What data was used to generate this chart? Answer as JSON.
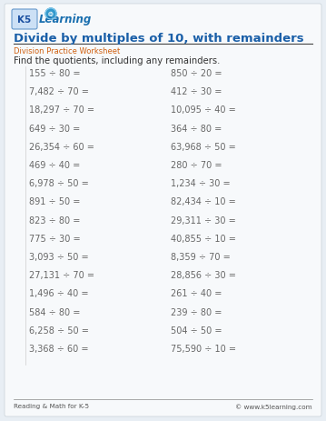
{
  "title": "Divide by multiples of 10, with remainders",
  "subtitle": "Division Practice Worksheet",
  "instruction": "Find the quotients, including any remainders.",
  "title_color": "#1a5fa8",
  "subtitle_color": "#d06010",
  "instruction_color": "#333333",
  "background_color": "#e8eef4",
  "inner_bg_color": "#f7f9fb",
  "footer_left": "Reading & Math for K-5",
  "footer_right": "© www.k5learning.com",
  "problems_left": [
    "155 ÷ 80 =",
    "7,482 ÷ 70 =",
    "18,297 ÷ 70 =",
    "649 ÷ 30 =",
    "26,354 ÷ 60 =",
    "469 ÷ 40 =",
    "6,978 ÷ 50 =",
    "891 ÷ 50 =",
    "823 ÷ 80 =",
    "775 ÷ 30 =",
    "3,093 ÷ 50 =",
    "27,131 ÷ 70 =",
    "1,496 ÷ 40 =",
    "584 ÷ 80 =",
    "6,258 ÷ 50 =",
    "3,368 ÷ 60 ="
  ],
  "problems_right": [
    "850 ÷ 20 =",
    "412 ÷ 30 =",
    "10,095 ÷ 40 =",
    "364 ÷ 80 =",
    "63,968 ÷ 50 =",
    "280 ÷ 70 =",
    "1,234 ÷ 30 =",
    "82,434 ÷ 10 =",
    "29,311 ÷ 30 =",
    "40,855 ÷ 10 =",
    "8,359 ÷ 70 =",
    "28,856 ÷ 30 =",
    "261 ÷ 40 =",
    "239 ÷ 80 =",
    "504 ÷ 50 =",
    "75,590 ÷ 10 ="
  ],
  "problem_color": "#666666",
  "problem_fontsize": 7.0,
  "title_fontsize": 9.5,
  "subtitle_fontsize": 6.0,
  "instruction_fontsize": 7.2,
  "footer_fontsize": 5.2
}
